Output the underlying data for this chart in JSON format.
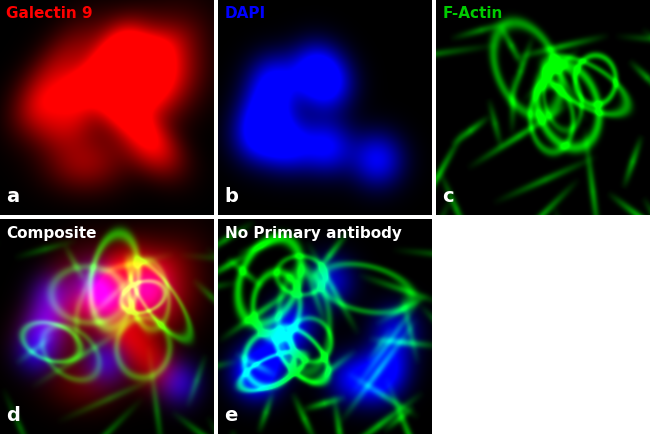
{
  "panels": [
    {
      "label": "a",
      "title": "Galectin 9",
      "title_color": "#ff0000",
      "bg_color": "#000000",
      "channel": "red",
      "row": 0,
      "col": 0
    },
    {
      "label": "b",
      "title": "DAPI",
      "title_color": "#0000ff",
      "bg_color": "#000000",
      "channel": "blue",
      "row": 0,
      "col": 1
    },
    {
      "label": "c",
      "title": "F-Actin",
      "title_color": "#00cc00",
      "bg_color": "#000000",
      "channel": "green",
      "row": 0,
      "col": 2
    },
    {
      "label": "d",
      "title": "Composite",
      "title_color": "#ffffff",
      "bg_color": "#000000",
      "channel": "composite",
      "row": 1,
      "col": 0
    },
    {
      "label": "e",
      "title": "No Primary antibody",
      "title_color": "#ffffff",
      "bg_color": "#000000",
      "channel": "no_primary",
      "row": 1,
      "col": 1
    }
  ],
  "label_color": "#ffffff",
  "label_fontsize": 14,
  "title_fontsize": 11,
  "fig_bg": "#ffffff",
  "border_color": "#ffffff",
  "border_width": 1.5
}
